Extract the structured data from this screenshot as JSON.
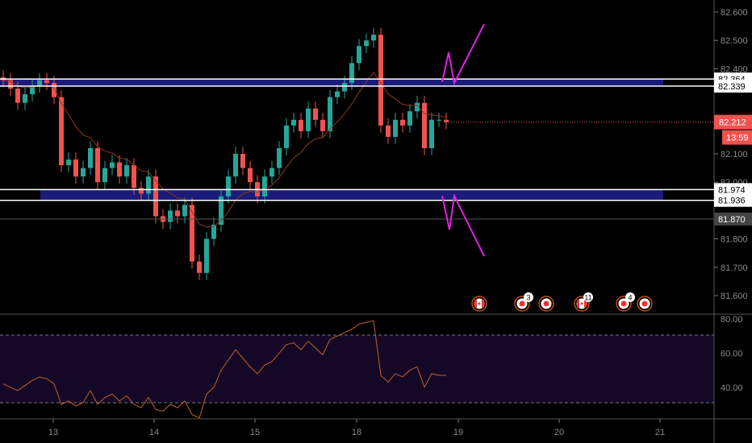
{
  "chart_data": {
    "type": "candlestick",
    "symbol_price_scale": {
      "min": 81.55,
      "max": 82.65
    },
    "price_ticks": [
      "82.600",
      "82.500",
      "82.400",
      "82.100",
      "82.000",
      "81.800",
      "81.700",
      "81.600"
    ],
    "time_ticks": [
      "13",
      "14",
      "15",
      "18",
      "19",
      "20",
      "21"
    ],
    "closes": [
      82.36,
      82.33,
      82.28,
      82.31,
      82.34,
      82.36,
      82.35,
      82.3,
      82.06,
      82.08,
      82.02,
      82.05,
      82.12,
      82.0,
      82.05,
      82.07,
      82.02,
      82.06,
      81.98,
      81.96,
      82.02,
      81.88,
      81.86,
      81.9,
      81.88,
      81.92,
      81.72,
      81.68,
      81.8,
      81.85,
      81.95,
      82.02,
      82.1,
      82.05,
      82.0,
      81.95,
      82.02,
      82.05,
      82.12,
      82.2,
      82.22,
      82.18,
      82.26,
      82.22,
      82.18,
      82.3,
      82.32,
      82.35,
      82.42,
      82.48,
      82.5,
      82.52,
      82.2,
      82.16,
      82.22,
      82.2,
      82.25,
      82.28,
      82.12,
      82.22,
      82.22,
      82.212
    ],
    "levels": [
      {
        "price": 82.364,
        "label": "82.364",
        "color": "#ffffff"
      },
      {
        "price": 82.339,
        "label": "82.339",
        "color": "#ffffff"
      },
      {
        "price": 81.974,
        "label": "81.974",
        "color": "#ffffff"
      },
      {
        "price": 81.936,
        "label": "81.936",
        "color": "#ffffff"
      },
      {
        "price": 81.87,
        "label": "81.870",
        "color": "#555555"
      }
    ],
    "current_price": {
      "label": "82.212",
      "countdown": "13:59",
      "color": "#ef5350"
    },
    "rsi": {
      "ticks": [
        "80.00",
        "60.00",
        "40.00"
      ],
      "upper": 70,
      "lower": 30,
      "values": [
        42,
        40,
        38,
        41,
        44,
        46,
        45,
        42,
        30,
        32,
        29,
        31,
        38,
        30,
        34,
        36,
        32,
        35,
        30,
        28,
        34,
        27,
        26,
        30,
        28,
        32,
        24,
        22,
        36,
        40,
        50,
        56,
        62,
        57,
        52,
        48,
        53,
        55,
        60,
        65,
        66,
        62,
        67,
        63,
        59,
        68,
        70,
        72,
        74,
        77,
        78,
        79,
        47,
        43,
        48,
        46,
        50,
        52,
        40,
        48,
        47,
        47
      ]
    },
    "up_color": "#26a69a",
    "down_color": "#ef5350",
    "events": [
      {
        "type": "flag-ca",
        "count": ""
      },
      {
        "type": "event",
        "count": "3"
      },
      {
        "type": "event",
        "count": ""
      },
      {
        "type": "flag-ca",
        "count": "11"
      },
      {
        "type": "event",
        "count": "4"
      },
      {
        "type": "event",
        "count": ""
      }
    ]
  }
}
